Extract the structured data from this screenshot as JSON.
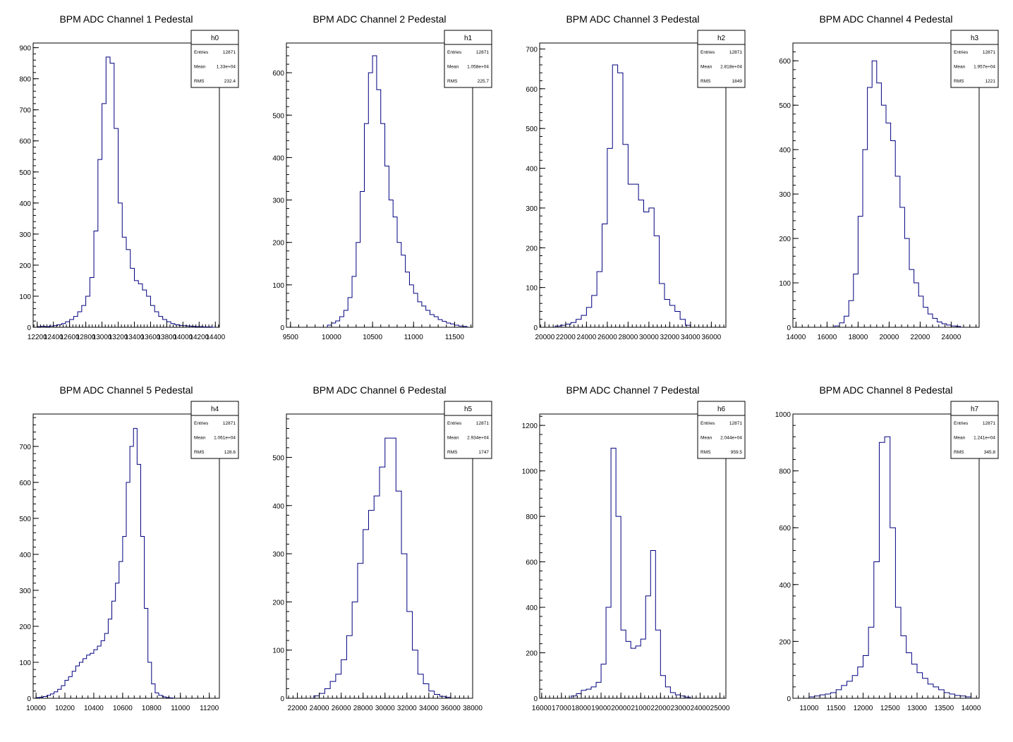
{
  "canvas": {
    "background": "#ffffff",
    "histogram_color": "#000080",
    "frame_color": "#000000"
  },
  "stat_labels": {
    "entries": "Entries",
    "mean": "Mean",
    "rms": "RMS"
  },
  "chart_data": [
    {
      "type": "histogram",
      "title": "BPM ADC Channel 1 Pedestal",
      "stats": {
        "name": "h0",
        "entries": "12871",
        "mean": "1.33e+04",
        "rms": "232.4"
      },
      "xlim": [
        12150,
        14450
      ],
      "ylim": [
        0,
        915
      ],
      "xticks": [
        12200,
        12400,
        12600,
        12800,
        13000,
        13200,
        13400,
        13600,
        13800,
        14000,
        14200,
        14400
      ],
      "xtick_labels": [
        "12200",
        "12400",
        "12600",
        "12800",
        "13000",
        "13200",
        "13400",
        "13600",
        "13800",
        "14000",
        "14200",
        "14400"
      ],
      "yticks": [
        0,
        100,
        200,
        300,
        400,
        500,
        600,
        700,
        800,
        900
      ],
      "ytick_labels": [
        "0",
        "100",
        "200",
        "300",
        "400",
        "500",
        "600",
        "700",
        "800",
        "900"
      ],
      "x": [
        12200,
        12250,
        12300,
        12350,
        12400,
        12450,
        12500,
        12550,
        12600,
        12650,
        12700,
        12750,
        12800,
        12850,
        12900,
        12950,
        13000,
        13050,
        13100,
        13150,
        13200,
        13250,
        13300,
        13350,
        13400,
        13450,
        13500,
        13550,
        13600,
        13650,
        13700,
        13750,
        13800,
        13850,
        13900,
        13950,
        14000,
        14050,
        14100,
        14150,
        14200,
        14250,
        14300,
        14350
      ],
      "values": [
        2,
        3,
        2,
        4,
        5,
        8,
        12,
        18,
        25,
        35,
        50,
        70,
        100,
        160,
        310,
        540,
        720,
        870,
        850,
        640,
        400,
        290,
        250,
        190,
        150,
        140,
        120,
        100,
        70,
        50,
        35,
        25,
        18,
        12,
        8,
        6,
        5,
        4,
        3,
        2,
        2,
        1,
        1,
        0
      ]
    },
    {
      "type": "histogram",
      "title": "BPM ADC Channel 2 Pedestal",
      "stats": {
        "name": "h1",
        "entries": "12871",
        "mean": "1.058e+04",
        "rms": "225.7"
      },
      "xlim": [
        9450,
        11720
      ],
      "ylim": [
        0,
        670
      ],
      "xticks": [
        9500,
        10000,
        10500,
        11000,
        11500
      ],
      "xtick_labels": [
        "9500",
        "10000",
        "10500",
        "11000",
        "11500"
      ],
      "yticks": [
        0,
        100,
        200,
        300,
        400,
        500,
        600
      ],
      "ytick_labels": [
        "0",
        "100",
        "200",
        "300",
        "400",
        "500",
        "600"
      ],
      "x": [
        9950,
        10000,
        10050,
        10100,
        10150,
        10200,
        10250,
        10300,
        10350,
        10400,
        10450,
        10500,
        10550,
        10600,
        10650,
        10700,
        10750,
        10800,
        10850,
        10900,
        10950,
        11000,
        11050,
        11100,
        11150,
        11200,
        11250,
        11300,
        11350,
        11400,
        11450,
        11500,
        11550,
        11600
      ],
      "values": [
        5,
        10,
        15,
        25,
        40,
        70,
        120,
        200,
        320,
        480,
        600,
        640,
        560,
        480,
        380,
        300,
        260,
        200,
        170,
        130,
        100,
        80,
        60,
        50,
        40,
        30,
        25,
        18,
        14,
        10,
        8,
        5,
        3,
        2
      ]
    },
    {
      "type": "histogram",
      "title": "BPM ADC Channel 3 Pedestal",
      "stats": {
        "name": "h2",
        "entries": "12871",
        "mean": "2.818e+04",
        "rms": "1849"
      },
      "xlim": [
        19500,
        37400
      ],
      "ylim": [
        0,
        715
      ],
      "xticks": [
        20000,
        22000,
        24000,
        26000,
        28000,
        30000,
        32000,
        34000,
        36000
      ],
      "xtick_labels": [
        "20000",
        "22000",
        "24000",
        "26000",
        "28000",
        "30000",
        "32000",
        "34000",
        "36000"
      ],
      "yticks": [
        0,
        100,
        200,
        300,
        400,
        500,
        600,
        700
      ],
      "ytick_labels": [
        "0",
        "100",
        "200",
        "300",
        "400",
        "500",
        "600",
        "700"
      ],
      "x": [
        21000,
        21500,
        22000,
        22500,
        23000,
        23500,
        24000,
        24500,
        25000,
        25500,
        26000,
        26500,
        27000,
        27500,
        28000,
        28500,
        29000,
        29500,
        30000,
        30500,
        31000,
        31500,
        32000,
        32500,
        33000,
        33500
      ],
      "values": [
        3,
        5,
        8,
        12,
        20,
        30,
        50,
        80,
        140,
        260,
        450,
        660,
        640,
        460,
        360,
        360,
        320,
        290,
        300,
        230,
        110,
        70,
        55,
        40,
        20,
        5
      ]
    },
    {
      "type": "histogram",
      "title": "BPM ADC Channel 4 Pedestal",
      "stats": {
        "name": "h3",
        "entries": "12871",
        "mean": "1.957e+04",
        "rms": "1221"
      },
      "xlim": [
        13800,
        25800
      ],
      "ylim": [
        0,
        640
      ],
      "xticks": [
        14000,
        16000,
        18000,
        20000,
        22000,
        24000
      ],
      "xtick_labels": [
        "14000",
        "16000",
        "18000",
        "20000",
        "22000",
        "24000"
      ],
      "yticks": [
        0,
        100,
        200,
        300,
        400,
        500,
        600
      ],
      "ytick_labels": [
        "0",
        "100",
        "200",
        "300",
        "400",
        "500",
        "600"
      ],
      "x": [
        16500,
        16800,
        17100,
        17400,
        17700,
        18000,
        18300,
        18600,
        18900,
        19200,
        19500,
        19800,
        20100,
        20400,
        20700,
        21000,
        21300,
        21600,
        21900,
        22200,
        22500,
        22800,
        23100,
        23400,
        23700,
        24000,
        24300
      ],
      "values": [
        3,
        10,
        25,
        60,
        120,
        250,
        400,
        540,
        600,
        550,
        500,
        460,
        420,
        340,
        270,
        200,
        130,
        100,
        70,
        45,
        30,
        20,
        12,
        8,
        5,
        3,
        2
      ]
    },
    {
      "type": "histogram",
      "title": "BPM ADC Channel 5 Pedestal",
      "stats": {
        "name": "h4",
        "entries": "12871",
        "mean": "1.061e+04",
        "rms": "128.6"
      },
      "xlim": [
        9980,
        11270
      ],
      "ylim": [
        0,
        790
      ],
      "xticks": [
        10000,
        10200,
        10400,
        10600,
        10800,
        11000,
        11200
      ],
      "xtick_labels": [
        "10000",
        "10200",
        "10400",
        "10600",
        "10800",
        "11000",
        "11200"
      ],
      "yticks": [
        0,
        100,
        200,
        300,
        400,
        500,
        600,
        700
      ],
      "ytick_labels": [
        "0",
        "100",
        "200",
        "300",
        "400",
        "500",
        "600",
        "700"
      ],
      "x": [
        10000,
        10025,
        10050,
        10075,
        10100,
        10125,
        10150,
        10175,
        10200,
        10225,
        10250,
        10275,
        10300,
        10325,
        10350,
        10375,
        10400,
        10425,
        10450,
        10475,
        10500,
        10525,
        10550,
        10575,
        10600,
        10625,
        10650,
        10675,
        10700,
        10725,
        10750,
        10775,
        10800,
        10825,
        10850,
        10875,
        10900,
        10925
      ],
      "values": [
        2,
        3,
        5,
        8,
        12,
        18,
        25,
        35,
        50,
        60,
        75,
        90,
        100,
        110,
        120,
        125,
        135,
        145,
        160,
        180,
        220,
        270,
        320,
        380,
        450,
        600,
        700,
        750,
        650,
        450,
        250,
        100,
        40,
        15,
        8,
        4,
        2,
        1
      ]
    },
    {
      "type": "histogram",
      "title": "BPM ADC Channel 6 Pedestal",
      "stats": {
        "name": "h5",
        "entries": "12871",
        "mean": "2.934e+04",
        "rms": "1747"
      },
      "xlim": [
        21000,
        38000
      ],
      "ylim": [
        0,
        590
      ],
      "xticks": [
        22000,
        24000,
        26000,
        28000,
        30000,
        32000,
        34000,
        36000,
        38000
      ],
      "xtick_labels": [
        "22000",
        "24000",
        "26000",
        "28000",
        "30000",
        "32000",
        "34000",
        "36000",
        "38000"
      ],
      "yticks": [
        0,
        100,
        200,
        300,
        400,
        500
      ],
      "ytick_labels": [
        "0",
        "100",
        "200",
        "300",
        "400",
        "500"
      ],
      "x": [
        23500,
        24000,
        24500,
        25000,
        25500,
        26000,
        26500,
        27000,
        27500,
        28000,
        28500,
        29000,
        29500,
        30000,
        30500,
        31000,
        31500,
        32000,
        32500,
        33000,
        33500,
        34000,
        34500,
        35000,
        35500
      ],
      "values": [
        5,
        10,
        20,
        35,
        50,
        80,
        130,
        200,
        280,
        350,
        390,
        420,
        480,
        540,
        540,
        430,
        300,
        180,
        100,
        50,
        30,
        15,
        8,
        4,
        2
      ]
    },
    {
      "type": "histogram",
      "title": "BPM ADC Channel 7 Pedestal",
      "stats": {
        "name": "h6",
        "entries": "12871",
        "mean": "2.044e+04",
        "rms": "959.5"
      },
      "xlim": [
        15900,
        25300
      ],
      "ylim": [
        0,
        1250
      ],
      "xticks": [
        16000,
        17000,
        18000,
        19000,
        20000,
        21000,
        22000,
        23000,
        24000,
        25000
      ],
      "xtick_labels": [
        "16000",
        "17000",
        "18000",
        "19000",
        "20000",
        "21000",
        "22000",
        "23000",
        "24000",
        "25000"
      ],
      "yticks": [
        0,
        200,
        400,
        600,
        800,
        1000,
        1200
      ],
      "ytick_labels": [
        "0",
        "200",
        "400",
        "600",
        "800",
        "1000",
        "1200"
      ],
      "x": [
        17500,
        17750,
        18000,
        18250,
        18500,
        18750,
        19000,
        19250,
        19500,
        19750,
        20000,
        20250,
        20500,
        20750,
        21000,
        21250,
        21500,
        21750,
        22000,
        22250,
        22500,
        22750,
        23000,
        23250
      ],
      "values": [
        10,
        20,
        35,
        40,
        50,
        70,
        150,
        400,
        1100,
        800,
        300,
        250,
        220,
        230,
        260,
        450,
        650,
        300,
        100,
        50,
        25,
        15,
        10,
        5
      ]
    },
    {
      "type": "histogram",
      "title": "BPM ADC Channel 8 Pedestal",
      "stats": {
        "name": "h7",
        "entries": "12871",
        "mean": "1.241e+04",
        "rms": "345.8"
      },
      "xlim": [
        10700,
        14150
      ],
      "ylim": [
        0,
        1000
      ],
      "xticks": [
        11000,
        11500,
        12000,
        12500,
        13000,
        13500,
        14000
      ],
      "xtick_labels": [
        "11000",
        "11500",
        "12000",
        "12500",
        "13000",
        "13500",
        "14000"
      ],
      "yticks": [
        0,
        200,
        400,
        600,
        800,
        1000
      ],
      "ytick_labels": [
        "0",
        "200",
        "400",
        "600",
        "800",
        "1000"
      ],
      "x": [
        11000,
        11100,
        11200,
        11300,
        11400,
        11500,
        11600,
        11700,
        11800,
        11900,
        12000,
        12100,
        12200,
        12300,
        12400,
        12500,
        12600,
        12700,
        12800,
        12900,
        13000,
        13100,
        13200,
        13300,
        13400,
        13500,
        13600,
        13700,
        13800,
        13900
      ],
      "values": [
        5,
        8,
        12,
        15,
        20,
        30,
        45,
        60,
        80,
        110,
        150,
        250,
        480,
        900,
        920,
        600,
        320,
        220,
        160,
        120,
        90,
        70,
        50,
        40,
        30,
        20,
        15,
        10,
        8,
        5
      ]
    }
  ]
}
